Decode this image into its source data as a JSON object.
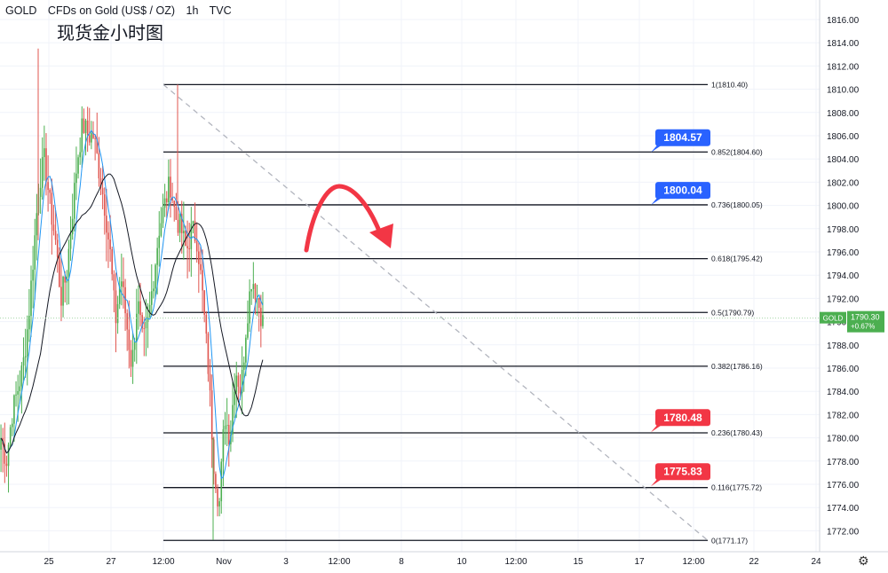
{
  "header": {
    "symbol": "GOLD",
    "name": "CFDs on Gold (US$ / OZ)",
    "interval": "1h",
    "source": "TVC"
  },
  "overlay_title": "现货金小时图",
  "price_badge": {
    "symbol": "GOLD",
    "price": "1790.30",
    "change": "+0.67%",
    "color": "#4caf50"
  },
  "colors": {
    "up": "#4caf50",
    "down": "#e0554f",
    "annotation_blue": "#2962ff",
    "annotation_red": "#f23645",
    "arrow": "#f23645",
    "ma_fast": "#2196f3",
    "ma_slow": "#131722"
  },
  "icons": {
    "settings": "gear-icon"
  },
  "chart_data": {
    "type": "candlestick",
    "symbol": "GOLD",
    "interval": "1h",
    "ylim": [
      1770.5,
      1817
    ],
    "y_ticks": [
      "1816.00",
      "1814.00",
      "1812.00",
      "1810.00",
      "1808.00",
      "1806.00",
      "1804.00",
      "1802.00",
      "1800.00",
      "1798.00",
      "1796.00",
      "1794.00",
      "1792.00",
      "1790.00",
      "1788.00",
      "1786.00",
      "1784.00",
      "1782.00",
      "1780.00",
      "1778.00",
      "1776.00",
      "1774.00",
      "1772.00"
    ],
    "x_ticks": [
      "25",
      "27",
      "12:00",
      "Nov",
      "3",
      "12:00",
      "8",
      "10",
      "12:00",
      "15",
      "17",
      "12:00",
      "22",
      "24"
    ],
    "last_price": 1790.3,
    "close_path": [
      1780,
      1778,
      1782,
      1784,
      1786,
      1790,
      1796,
      1802,
      1804,
      1800,
      1797,
      1792,
      1794,
      1799,
      1804,
      1807,
      1806,
      1806,
      1803,
      1800,
      1796,
      1790,
      1794,
      1790,
      1786,
      1792,
      1788,
      1790,
      1794,
      1798,
      1800,
      1802,
      1799,
      1798,
      1796,
      1798,
      1797,
      1792,
      1786,
      1778,
      1774,
      1782,
      1780,
      1786,
      1784,
      1790,
      1794,
      1792,
      1790
    ],
    "fibonacci": [
      {
        "ratio": "1",
        "price": 1810.4,
        "label": "1(1810.40)"
      },
      {
        "ratio": "0.852",
        "price": 1804.6,
        "label": "0.852(1804.60)"
      },
      {
        "ratio": "0.736",
        "price": 1800.05,
        "label": "0.736(1800.05)"
      },
      {
        "ratio": "0.618",
        "price": 1795.42,
        "label": "0.618(1795.42)"
      },
      {
        "ratio": "0.5",
        "price": 1790.79,
        "label": "0.5(1790.79)"
      },
      {
        "ratio": "0.382",
        "price": 1786.16,
        "label": "0.382(1786.16)"
      },
      {
        "ratio": "0.236",
        "price": 1780.43,
        "label": "0.236(1780.43)"
      },
      {
        "ratio": "0.116",
        "price": 1775.72,
        "label": "0.116(1775.72)"
      },
      {
        "ratio": "0",
        "price": 1771.17,
        "label": "0(1771.17)"
      }
    ],
    "annotations": [
      {
        "text": "1804.57",
        "price": 1804.57,
        "color": "blue"
      },
      {
        "text": "1800.04",
        "price": 1800.04,
        "color": "blue"
      },
      {
        "text": "1780.48",
        "price": 1780.48,
        "color": "red"
      },
      {
        "text": "1775.83",
        "price": 1775.83,
        "color": "red"
      }
    ],
    "trendline": {
      "from": 1810.4,
      "to": 1771.17,
      "style": "dashed",
      "color": "#b2b5be"
    },
    "forecast_arrow": "up-then-down"
  }
}
